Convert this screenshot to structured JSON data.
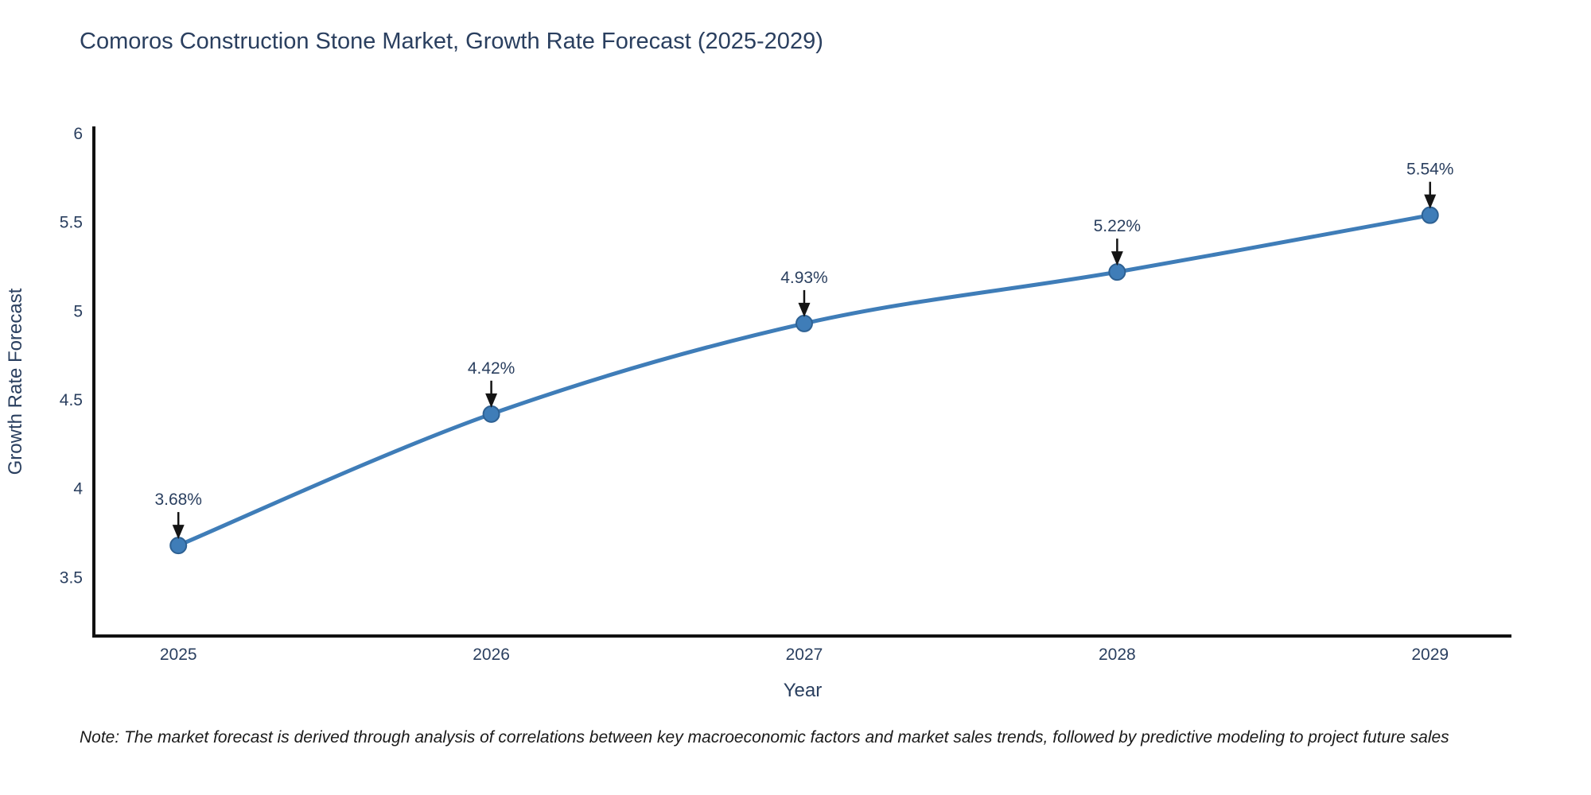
{
  "chart_data": {
    "type": "line",
    "title": "Comoros Construction Stone Market, Growth Rate Forecast (2025-2029)",
    "xlabel": "Year",
    "ylabel": "Growth Rate Forecast",
    "x": [
      2025,
      2026,
      2027,
      2028,
      2029
    ],
    "series": [
      {
        "name": "Growth Rate Forecast",
        "values": [
          3.68,
          4.42,
          4.93,
          5.22,
          5.54
        ]
      }
    ],
    "point_labels": [
      "3.68%",
      "4.42%",
      "4.93%",
      "5.22%",
      "5.54%"
    ],
    "xticks": [
      2025,
      2026,
      2027,
      2028,
      2029
    ],
    "xtick_labels": [
      "2025",
      "2026",
      "2027",
      "2028",
      "2029"
    ],
    "yticks": [
      3.5,
      4,
      4.5,
      5,
      5.5,
      6
    ],
    "ytick_labels": [
      "3.5",
      "4",
      "4.5",
      "5",
      "5.5",
      "6"
    ],
    "xlim": [
      2024.73,
      2029.26
    ],
    "ylim": [
      3.17,
      6.04
    ],
    "grid": false,
    "legend_position": "none",
    "line_shape": "spline",
    "annotation_arrows": "down-to-point",
    "colors": {
      "line": "#3f7db8",
      "marker_fill": "#3f7db8",
      "marker_edge": "#2e6193",
      "axis_line": "#111111",
      "label_text": "#2a3f5f",
      "arrow": "#141414",
      "background": "#ffffff"
    }
  },
  "note": "Note: The market forecast is derived through analysis of correlations between key macroeconomic factors and market sales trends, followed by predictive modeling to project future sales"
}
